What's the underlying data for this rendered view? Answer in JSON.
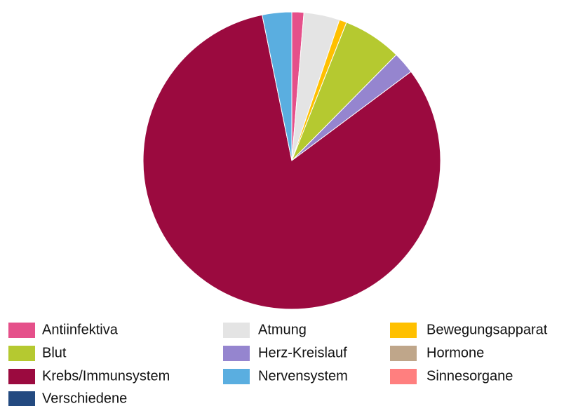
{
  "chart_data": {
    "type": "pie",
    "categories": [
      "Antiinfektiva",
      "Atmung",
      "Bewegungsapparat",
      "Blut",
      "Herz-Kreislauf",
      "Hormone",
      "Krebs/Immunsystem",
      "Nervensystem",
      "Sinnesorgane",
      "Verschiedene"
    ],
    "values": [
      1.3,
      3.9,
      0.8,
      6.4,
      2.4,
      0,
      82,
      3.2,
      0,
      0
    ],
    "colors": [
      "#e5508a",
      "#e4e4e4",
      "#ffc000",
      "#b5c930",
      "#9585cf",
      "#bfa68a",
      "#9b0a3f",
      "#5aaee0",
      "#ff7f7f",
      "#234a80"
    ],
    "legend": "bottom"
  }
}
